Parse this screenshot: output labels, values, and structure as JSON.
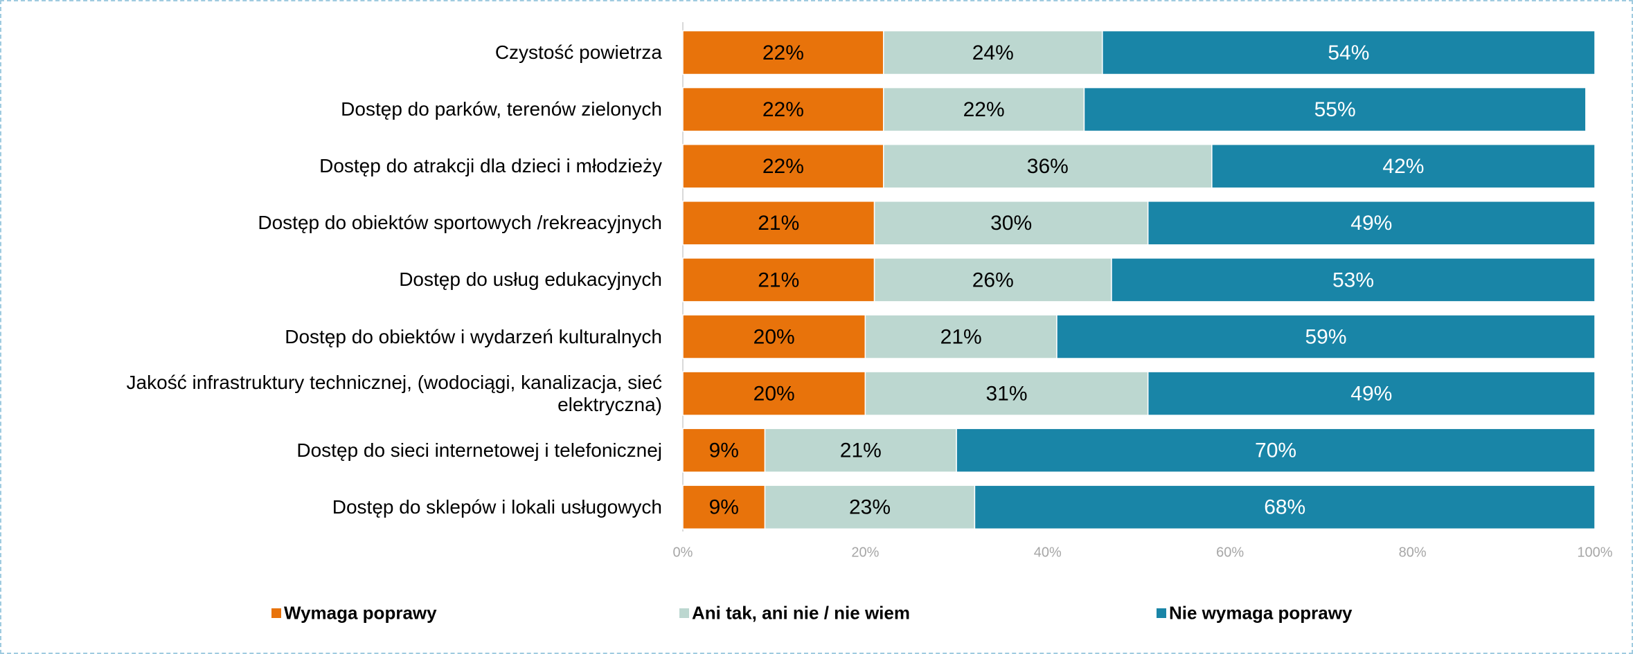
{
  "chart_data": {
    "type": "bar",
    "orientation": "horizontal",
    "stacked": true,
    "categories": [
      "Czystość powietrza",
      "Dostęp do parków, terenów zielonych",
      "Dostęp do atrakcji dla dzieci i młodzieży",
      "Dostęp do obiektów sportowych /rekreacyjnych",
      "Dostęp do usług edukacyjnych",
      "Dostęp do obiektów i wydarzeń kulturalnych",
      "Jakość infrastruktury technicznej, (wodociągi, kanalizacja, sieć elektryczna)",
      "Dostęp do sieci internetowej i telefonicznej",
      "Dostęp do sklepów i lokali usługowych"
    ],
    "series": [
      {
        "name": "Wymaga poprawy",
        "color": "#e8730b",
        "label_color": "#000000",
        "values": [
          22,
          22,
          22,
          21,
          21,
          20,
          20,
          9,
          9
        ],
        "value_labels": [
          "22%",
          "22%",
          "22%",
          "21%",
          "21%",
          "20%",
          "20%",
          "9%",
          "9%"
        ]
      },
      {
        "name": "Ani tak, ani nie / nie wiem",
        "color": "#bcd7d0",
        "label_color": "#000000",
        "values": [
          24,
          22,
          36,
          30,
          26,
          21,
          31,
          21,
          23
        ],
        "value_labels": [
          "24%",
          "22%",
          "36%",
          "30%",
          "26%",
          "21%",
          "31%",
          "21%",
          "23%"
        ]
      },
      {
        "name": "Nie wymaga poprawy",
        "color": "#1985a7",
        "label_color": "#ffffff",
        "values": [
          54,
          55,
          42,
          49,
          53,
          59,
          49,
          70,
          68
        ],
        "value_labels": [
          "54%",
          "55%",
          "42%",
          "49%",
          "53%",
          "59%",
          "49%",
          "70%",
          "68%"
        ]
      }
    ],
    "xlim": [
      0,
      100
    ],
    "xticks": [
      {
        "value": 0,
        "label": "0%"
      },
      {
        "value": 20,
        "label": "20%"
      },
      {
        "value": 40,
        "label": "40%"
      },
      {
        "value": 60,
        "label": "60%"
      },
      {
        "value": 80,
        "label": "80%"
      },
      {
        "value": 100,
        "label": "100%"
      }
    ],
    "legend": "bottom"
  }
}
